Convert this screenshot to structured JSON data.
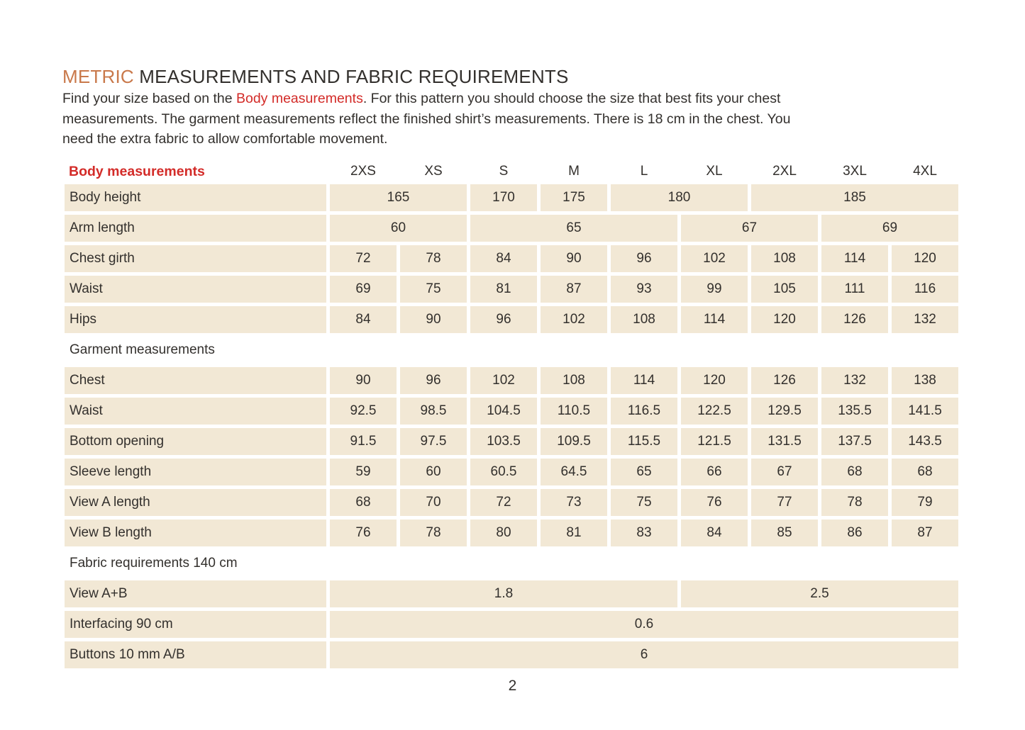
{
  "title": {
    "highlight": "METRIC",
    "rest": " MEASUREMENTS AND FABRIC REQUIREMENTS"
  },
  "intro": {
    "line1_before": "Find your size based on the ",
    "line1_link": "Body measurements",
    "line1_after": ". For this pattern you should choose the size that best fits your chest",
    "line2": "measurements. The garment measurements reflect the finished shirt’s measurements. There is 18 cm in the chest. You",
    "line3": "need the extra fabric to allow comfortable movement."
  },
  "table": {
    "header_label": "Body measurements",
    "sizes": [
      "2XS",
      "XS",
      "S",
      "M",
      "L",
      "XL",
      "2XL",
      "3XL",
      "4XL"
    ],
    "body_rows": [
      {
        "kind": "data",
        "label": "Body height",
        "cells": [
          {
            "v": "165",
            "span": 2
          },
          {
            "v": "170",
            "span": 1
          },
          {
            "v": "175",
            "span": 1
          },
          {
            "v": "180",
            "span": 2
          },
          {
            "v": "185",
            "span": 3
          }
        ]
      },
      {
        "kind": "data",
        "label": "Arm length",
        "cells": [
          {
            "v": "60",
            "span": 2
          },
          {
            "v": "65",
            "span": 3
          },
          {
            "v": "67",
            "span": 2
          },
          {
            "v": "69",
            "span": 2
          }
        ]
      },
      {
        "kind": "data",
        "label": "Chest girth",
        "cells": [
          {
            "v": "72"
          },
          {
            "v": "78"
          },
          {
            "v": "84"
          },
          {
            "v": "90"
          },
          {
            "v": "96"
          },
          {
            "v": "102"
          },
          {
            "v": "108"
          },
          {
            "v": "114"
          },
          {
            "v": "120"
          }
        ]
      },
      {
        "kind": "data",
        "label": "Waist",
        "cells": [
          {
            "v": "69"
          },
          {
            "v": "75"
          },
          {
            "v": "81"
          },
          {
            "v": "87"
          },
          {
            "v": "93"
          },
          {
            "v": "99"
          },
          {
            "v": "105"
          },
          {
            "v": "111"
          },
          {
            "v": "116"
          }
        ]
      },
      {
        "kind": "data",
        "label": "Hips",
        "cells": [
          {
            "v": "84"
          },
          {
            "v": "90"
          },
          {
            "v": "96"
          },
          {
            "v": "102"
          },
          {
            "v": "108"
          },
          {
            "v": "114"
          },
          {
            "v": "120"
          },
          {
            "v": "126"
          },
          {
            "v": "132"
          }
        ]
      },
      {
        "kind": "section",
        "label": "Garment measurements"
      },
      {
        "kind": "data",
        "label": "Chest",
        "cells": [
          {
            "v": "90"
          },
          {
            "v": "96"
          },
          {
            "v": "102"
          },
          {
            "v": "108"
          },
          {
            "v": "114"
          },
          {
            "v": "120"
          },
          {
            "v": "126"
          },
          {
            "v": "132"
          },
          {
            "v": "138"
          }
        ]
      },
      {
        "kind": "data",
        "label": "Waist",
        "cells": [
          {
            "v": "92.5"
          },
          {
            "v": "98.5"
          },
          {
            "v": "104.5"
          },
          {
            "v": "110.5"
          },
          {
            "v": "116.5"
          },
          {
            "v": "122.5"
          },
          {
            "v": "129.5"
          },
          {
            "v": "135.5"
          },
          {
            "v": "141.5"
          }
        ]
      },
      {
        "kind": "data",
        "label": "Bottom opening",
        "cells": [
          {
            "v": "91.5"
          },
          {
            "v": "97.5"
          },
          {
            "v": "103.5"
          },
          {
            "v": "109.5"
          },
          {
            "v": "115.5"
          },
          {
            "v": "121.5"
          },
          {
            "v": "131.5"
          },
          {
            "v": "137.5"
          },
          {
            "v": "143.5"
          }
        ]
      },
      {
        "kind": "data",
        "label": "Sleeve length",
        "cells": [
          {
            "v": "59"
          },
          {
            "v": "60"
          },
          {
            "v": "60.5"
          },
          {
            "v": "64.5"
          },
          {
            "v": "65"
          },
          {
            "v": "66"
          },
          {
            "v": "67"
          },
          {
            "v": "68"
          },
          {
            "v": "68"
          }
        ]
      },
      {
        "kind": "data",
        "label": "View A length",
        "cells": [
          {
            "v": "68"
          },
          {
            "v": "70"
          },
          {
            "v": "72"
          },
          {
            "v": "73"
          },
          {
            "v": "75"
          },
          {
            "v": "76"
          },
          {
            "v": "77"
          },
          {
            "v": "78"
          },
          {
            "v": "79"
          }
        ]
      },
      {
        "kind": "data",
        "label": "View B length",
        "cells": [
          {
            "v": "76"
          },
          {
            "v": "78"
          },
          {
            "v": "80"
          },
          {
            "v": "81"
          },
          {
            "v": "83"
          },
          {
            "v": "84"
          },
          {
            "v": "85"
          },
          {
            "v": "86"
          },
          {
            "v": "87"
          }
        ]
      },
      {
        "kind": "section",
        "label": "Fabric requirements 140 cm"
      },
      {
        "kind": "data",
        "label": "View A+B",
        "cells": [
          {
            "v": "1.8",
            "span": 5
          },
          {
            "v": "2.5",
            "span": 4
          }
        ]
      },
      {
        "kind": "data",
        "label": "Interfacing 90 cm",
        "cells": [
          {
            "v": "0.6",
            "span": 9
          }
        ]
      },
      {
        "kind": "data",
        "label": "Buttons 10 mm A/B",
        "cells": [
          {
            "v": "6",
            "span": 9
          }
        ]
      }
    ]
  },
  "footer": {
    "page_number": "2"
  },
  "colors": {
    "accent_orange": "#C9794B",
    "accent_red": "#D32B28",
    "cell_beige": "#F2E8D5",
    "text_ink": "#33302D",
    "page_background": "#FFFFFF"
  }
}
